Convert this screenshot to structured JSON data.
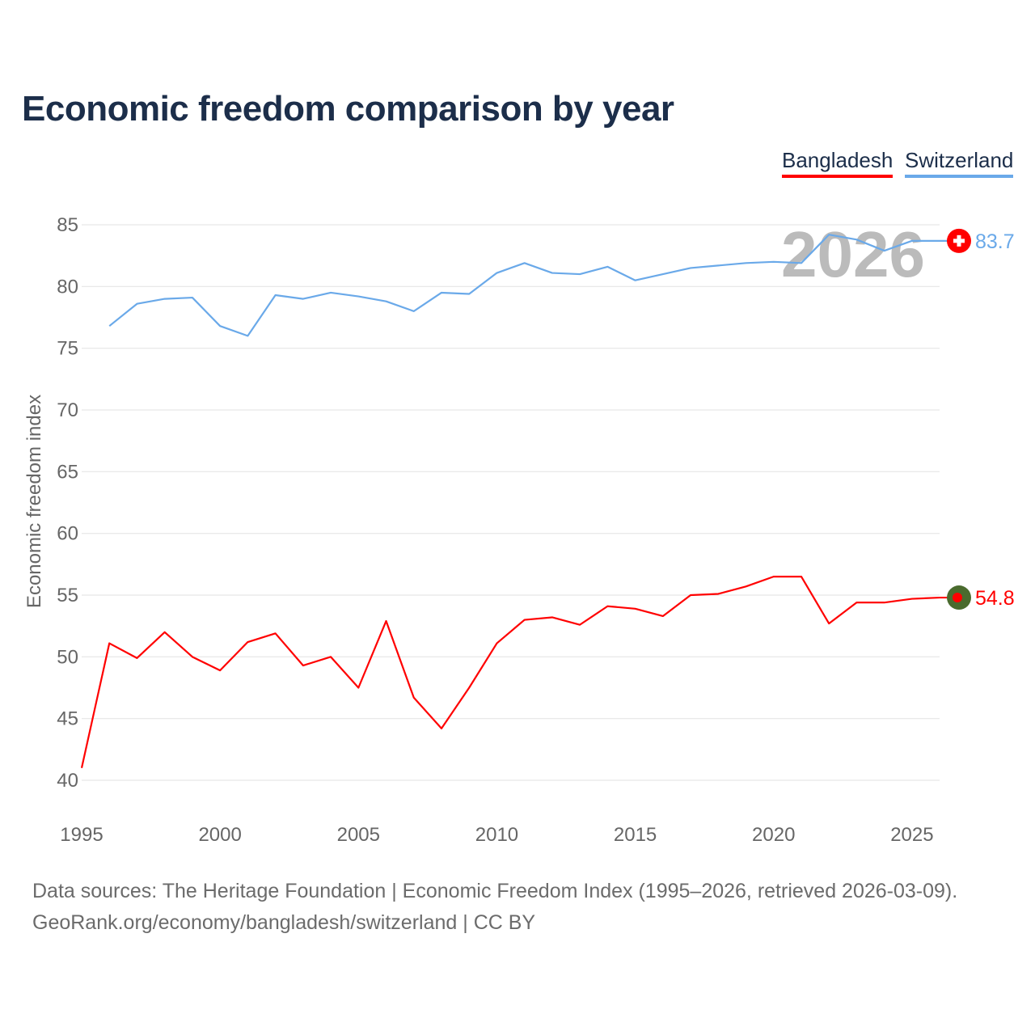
{
  "chart_data": {
    "type": "line",
    "title": "Economic freedom comparison by year",
    "xlabel": "",
    "ylabel": "Economic freedom index",
    "ylim": [
      40,
      85
    ],
    "xlim": [
      1995,
      2026
    ],
    "yticks": [
      40,
      45,
      50,
      55,
      60,
      65,
      70,
      75,
      80,
      85
    ],
    "xticks": [
      1995,
      2000,
      2005,
      2010,
      2015,
      2020,
      2025
    ],
    "grid": true,
    "legend_position": "top-right",
    "watermark_year": "2026",
    "series": [
      {
        "name": "Bangladesh",
        "color": "#ff0000",
        "end_label": "54.8",
        "x": [
          1995,
          1996,
          1997,
          1998,
          1999,
          2000,
          2001,
          2002,
          2003,
          2004,
          2005,
          2006,
          2007,
          2008,
          2009,
          2010,
          2011,
          2012,
          2013,
          2014,
          2015,
          2016,
          2017,
          2018,
          2019,
          2020,
          2021,
          2022,
          2023,
          2024,
          2025,
          2026
        ],
        "values": [
          41.0,
          51.1,
          49.9,
          52.0,
          50.0,
          48.9,
          51.2,
          51.9,
          49.3,
          50.0,
          47.5,
          52.9,
          46.7,
          44.2,
          47.5,
          51.1,
          53.0,
          53.2,
          52.6,
          54.1,
          53.9,
          53.3,
          55.0,
          55.1,
          55.7,
          56.5,
          56.5,
          52.7,
          54.4,
          54.4,
          54.7,
          54.8
        ]
      },
      {
        "name": "Switzerland",
        "color": "#6aa9e9",
        "end_label": "83.7",
        "x": [
          1996,
          1997,
          1998,
          1999,
          2000,
          2001,
          2002,
          2003,
          2004,
          2005,
          2006,
          2007,
          2008,
          2009,
          2010,
          2011,
          2012,
          2013,
          2014,
          2015,
          2016,
          2017,
          2018,
          2019,
          2020,
          2021,
          2022,
          2023,
          2024,
          2025,
          2026
        ],
        "values": [
          76.8,
          78.6,
          79.0,
          79.1,
          76.8,
          76.0,
          79.3,
          79.0,
          79.5,
          79.2,
          78.8,
          78.0,
          79.5,
          79.4,
          81.1,
          81.9,
          81.1,
          81.0,
          81.6,
          80.5,
          81.0,
          81.5,
          81.7,
          81.9,
          82.0,
          81.9,
          84.2,
          83.8,
          82.9,
          83.7,
          83.7
        ]
      }
    ]
  },
  "footer": {
    "sources": "Data sources: The Heritage Foundation | Economic Freedom Index (1995–2026, retrieved 2026-03-09).",
    "credit": "GeoRank.org/economy/bangladesh/switzerland | CC BY"
  }
}
